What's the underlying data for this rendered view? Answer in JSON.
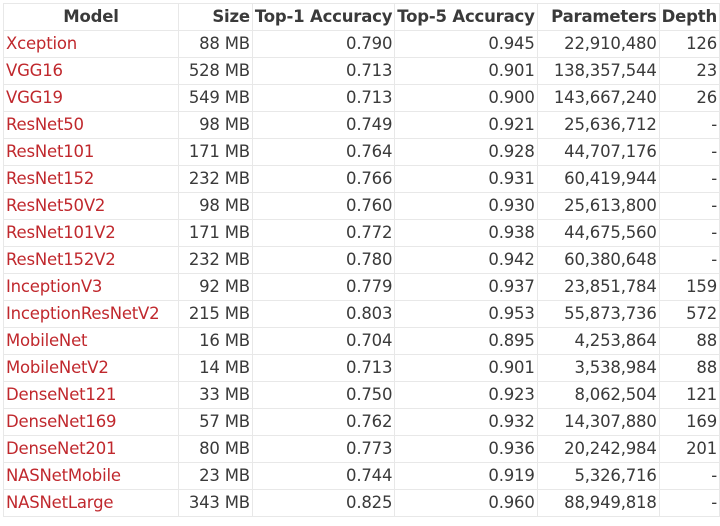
{
  "table": {
    "headers": [
      "Model",
      "Size",
      "Top-1 Accuracy",
      "Top-5 Accuracy",
      "Parameters",
      "Depth"
    ],
    "rows": [
      {
        "model": "Xception",
        "size": "88 MB",
        "top1": "0.790",
        "top5": "0.945",
        "params": "22,910,480",
        "depth": "126"
      },
      {
        "model": "VGG16",
        "size": "528 MB",
        "top1": "0.713",
        "top5": "0.901",
        "params": "138,357,544",
        "depth": "23"
      },
      {
        "model": "VGG19",
        "size": "549 MB",
        "top1": "0.713",
        "top5": "0.900",
        "params": "143,667,240",
        "depth": "26"
      },
      {
        "model": "ResNet50",
        "size": "98 MB",
        "top1": "0.749",
        "top5": "0.921",
        "params": "25,636,712",
        "depth": "-"
      },
      {
        "model": "ResNet101",
        "size": "171 MB",
        "top1": "0.764",
        "top5": "0.928",
        "params": "44,707,176",
        "depth": "-"
      },
      {
        "model": "ResNet152",
        "size": "232 MB",
        "top1": "0.766",
        "top5": "0.931",
        "params": "60,419,944",
        "depth": "-"
      },
      {
        "model": "ResNet50V2",
        "size": "98 MB",
        "top1": "0.760",
        "top5": "0.930",
        "params": "25,613,800",
        "depth": "-"
      },
      {
        "model": "ResNet101V2",
        "size": "171 MB",
        "top1": "0.772",
        "top5": "0.938",
        "params": "44,675,560",
        "depth": "-"
      },
      {
        "model": "ResNet152V2",
        "size": "232 MB",
        "top1": "0.780",
        "top5": "0.942",
        "params": "60,380,648",
        "depth": "-"
      },
      {
        "model": "InceptionV3",
        "size": "92 MB",
        "top1": "0.779",
        "top5": "0.937",
        "params": "23,851,784",
        "depth": "159"
      },
      {
        "model": "InceptionResNetV2",
        "size": "215 MB",
        "top1": "0.803",
        "top5": "0.953",
        "params": "55,873,736",
        "depth": "572"
      },
      {
        "model": "MobileNet",
        "size": "16 MB",
        "top1": "0.704",
        "top5": "0.895",
        "params": "4,253,864",
        "depth": "88"
      },
      {
        "model": "MobileNetV2",
        "size": "14 MB",
        "top1": "0.713",
        "top5": "0.901",
        "params": "3,538,984",
        "depth": "88"
      },
      {
        "model": "DenseNet121",
        "size": "33 MB",
        "top1": "0.750",
        "top5": "0.923",
        "params": "8,062,504",
        "depth": "121"
      },
      {
        "model": "DenseNet169",
        "size": "57 MB",
        "top1": "0.762",
        "top5": "0.932",
        "params": "14,307,880",
        "depth": "169"
      },
      {
        "model": "DenseNet201",
        "size": "80 MB",
        "top1": "0.773",
        "top5": "0.936",
        "params": "20,242,984",
        "depth": "201"
      },
      {
        "model": "NASNetMobile",
        "size": "23 MB",
        "top1": "0.744",
        "top5": "0.919",
        "params": "5,326,716",
        "depth": "-"
      },
      {
        "model": "NASNetLarge",
        "size": "343 MB",
        "top1": "0.825",
        "top5": "0.960",
        "params": "88,949,818",
        "depth": "-"
      }
    ]
  },
  "colors": {
    "link": "#c0282d",
    "text": "#3a3a3a",
    "border": "#e8e8e8"
  }
}
